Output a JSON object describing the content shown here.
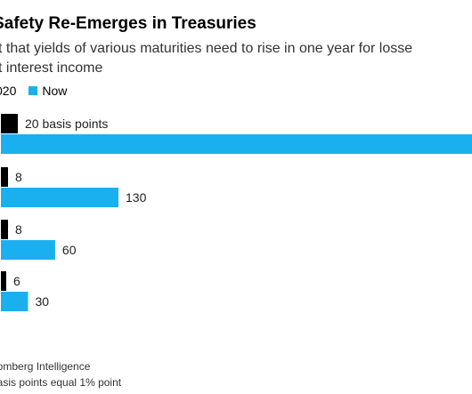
{
  "header": {
    "title": "n of Safety Re-Emerges in Treasuries",
    "subtitle_line1": "t that yields of various maturities need to rise in one year for losse",
    "subtitle_line2": "t interest income"
  },
  "legend": {
    "items": [
      {
        "label": "020",
        "color": "#000000"
      },
      {
        "label": "Now",
        "color": "#1ab0f0"
      }
    ]
  },
  "chart_data": {
    "type": "bar",
    "orientation": "horizontal",
    "title": "n of Safety Re-Emerges in Treasuries",
    "categories": [
      "",
      "",
      "",
      ""
    ],
    "series": [
      {
        "name": "020",
        "color": "#000000",
        "values": [
          20,
          8,
          8,
          6
        ]
      },
      {
        "name": "Now",
        "color": "#1ab0f0",
        "values": [
          null,
          130,
          60,
          30
        ]
      }
    ],
    "data_labels": {
      "020": [
        "20 basis points",
        "8",
        "8",
        "6"
      ],
      "Now": [
        "",
        "130",
        "60",
        "30"
      ]
    },
    "grid": false
  },
  "footer": {
    "source": "oomberg Intelligence",
    "note": "basis points equal 1% point"
  }
}
